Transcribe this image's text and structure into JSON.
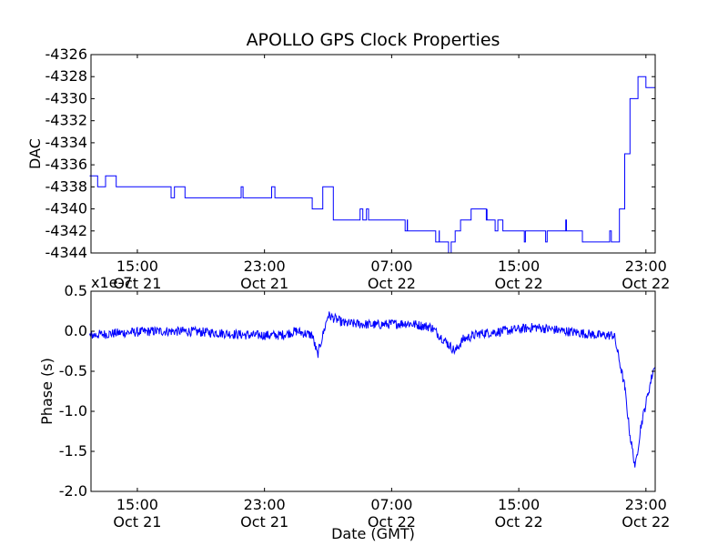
{
  "chart_data": {
    "title": "APOLLO GPS Clock Properties",
    "xlabel": "Date (GMT)",
    "line_color": "#0000ff",
    "x_ticks": [
      {
        "time": "15:00",
        "date": "Oct 21"
      },
      {
        "time": "23:00",
        "date": "Oct 21"
      },
      {
        "time": "07:00",
        "date": "Oct 22"
      },
      {
        "time": "15:00",
        "date": "Oct 22"
      },
      {
        "time": "23:00",
        "date": "Oct 22"
      }
    ],
    "panels": [
      {
        "type": "line",
        "step": true,
        "ylabel": "DAC",
        "ylim": [
          -4344,
          -4326
        ],
        "yticks": [
          "-4326",
          "-4328",
          "-4330",
          "-4332",
          "-4334",
          "-4336",
          "-4338",
          "-4340",
          "-4342",
          "-4344"
        ],
        "x": [
          "Oct 21 12:00",
          "Oct 21 12:30",
          "Oct 21 13:00",
          "Oct 21 13:40",
          "Oct 21 14:00",
          "Oct 21 16:00",
          "Oct 21 18:00",
          "Oct 21 20:00",
          "Oct 21 22:00",
          "Oct 22 00:00",
          "Oct 22 01:20",
          "Oct 22 02:00",
          "Oct 22 02:40",
          "Oct 22 03:20",
          "Oct 22 04:00",
          "Oct 22 06:00",
          "Oct 22 08:00",
          "Oct 22 09:00",
          "Oct 22 10:00",
          "Oct 22 11:00",
          "Oct 22 11:20",
          "Oct 22 12:00",
          "Oct 22 12:20",
          "Oct 22 13:00",
          "Oct 22 14:00",
          "Oct 22 16:00",
          "Oct 22 18:00",
          "Oct 22 19:00",
          "Oct 22 20:00",
          "Oct 22 21:00",
          "Oct 22 21:20",
          "Oct 22 21:40",
          "Oct 22 22:00",
          "Oct 22 22:30",
          "Oct 22 23:00",
          "Oct 22 23:30"
        ],
        "values": [
          -4337,
          -4338,
          -4337,
          -4338,
          -4338,
          -4338,
          -4339,
          -4339,
          -4339,
          -4339,
          -4339,
          -4340,
          -4338,
          -4341,
          -4341,
          -4341,
          -4342,
          -4342,
          -4343,
          -4342,
          -4341,
          -4340,
          -4340,
          -4341,
          -4342,
          -4342,
          -4342,
          -4343,
          -4343,
          -4343,
          -4340,
          -4335,
          -4330,
          -4328,
          -4329,
          -4329
        ]
      },
      {
        "type": "line",
        "ylabel": "Phase (s)",
        "offset_label": "x1e-7",
        "ylim": [
          -2.0,
          0.5
        ],
        "yticks": [
          "0.5",
          "0.0",
          "-0.5",
          "-1.0",
          "-1.5",
          "-2.0"
        ],
        "x": [
          "Oct 21 12:00",
          "Oct 21 14:00",
          "Oct 21 16:00",
          "Oct 21 18:00",
          "Oct 21 20:00",
          "Oct 21 22:00",
          "Oct 22 00:00",
          "Oct 22 01:00",
          "Oct 22 02:00",
          "Oct 22 02:20",
          "Oct 22 03:00",
          "Oct 22 04:00",
          "Oct 22 06:00",
          "Oct 22 08:00",
          "Oct 22 09:30",
          "Oct 22 10:30",
          "Oct 22 11:00",
          "Oct 22 11:30",
          "Oct 22 12:30",
          "Oct 22 14:00",
          "Oct 22 16:00",
          "Oct 22 18:00",
          "Oct 22 20:00",
          "Oct 22 21:00",
          "Oct 22 21:40",
          "Oct 22 22:00",
          "Oct 22 22:20",
          "Oct 22 22:40",
          "Oct 22 23:00",
          "Oct 22 23:30"
        ],
        "values": [
          -0.05,
          -0.02,
          0.0,
          0.0,
          -0.02,
          -0.05,
          -0.05,
          0.0,
          -0.05,
          -0.3,
          0.2,
          0.1,
          0.08,
          0.1,
          0.05,
          -0.15,
          -0.25,
          -0.1,
          -0.03,
          0.0,
          0.05,
          0.0,
          -0.05,
          -0.05,
          -0.7,
          -1.3,
          -1.7,
          -1.2,
          -0.9,
          -0.45
        ]
      }
    ]
  }
}
